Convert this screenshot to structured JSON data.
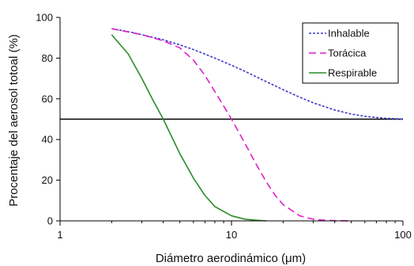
{
  "chart_data": {
    "type": "line",
    "xlabel": "Diámetro aerodinámico (μm)",
    "ylabel": "Procentaje del aerosol totoal (%)",
    "xscale": "log",
    "xlim": [
      1,
      100
    ],
    "ylim": [
      0,
      100
    ],
    "x_ticks": [
      {
        "value": 1,
        "label": "1"
      },
      {
        "value": 10,
        "label": "10"
      },
      {
        "value": 100,
        "label": "100"
      }
    ],
    "y_ticks": [
      {
        "value": 0,
        "label": "0"
      },
      {
        "value": 20,
        "label": "20"
      },
      {
        "value": 40,
        "label": "40"
      },
      {
        "value": 60,
        "label": "60"
      },
      {
        "value": 80,
        "label": "80"
      },
      {
        "value": 100,
        "label": "100"
      }
    ],
    "grid": false,
    "legend_position": "top-right",
    "reference_line": {
      "y": 50,
      "color": "#000000"
    },
    "series": [
      {
        "name": "Inhalable",
        "color": "#3a3ac8",
        "style": "dotted",
        "points": [
          [
            2,
            94.5
          ],
          [
            2.5,
            93
          ],
          [
            3,
            91.5
          ],
          [
            4,
            89
          ],
          [
            5,
            86.5
          ],
          [
            6,
            84.2
          ],
          [
            8,
            80
          ],
          [
            10,
            76.5
          ],
          [
            12,
            73.5
          ],
          [
            15,
            69.5
          ],
          [
            20,
            64.5
          ],
          [
            25,
            60.8
          ],
          [
            30,
            58
          ],
          [
            40,
            54.5
          ],
          [
            50,
            52.5
          ],
          [
            60,
            51.4
          ],
          [
            70,
            50.8
          ],
          [
            80,
            50.4
          ],
          [
            100,
            50
          ]
        ]
      },
      {
        "name": "Torácica",
        "color": "#e020c8",
        "style": "dashed",
        "points": [
          [
            2,
            94.5
          ],
          [
            3,
            91.5
          ],
          [
            4,
            88.5
          ],
          [
            5,
            85
          ],
          [
            6,
            79
          ],
          [
            7,
            71.5
          ],
          [
            8,
            63.5
          ],
          [
            9,
            56.5
          ],
          [
            10,
            50
          ],
          [
            12,
            38
          ],
          [
            14,
            27.5
          ],
          [
            16,
            19
          ],
          [
            18,
            12.5
          ],
          [
            20,
            8
          ],
          [
            25,
            2.5
          ],
          [
            30,
            0.8
          ],
          [
            35,
            0.3
          ],
          [
            40,
            0.1
          ],
          [
            50,
            0
          ]
        ]
      },
      {
        "name": "Respirable",
        "color": "#2a8c2a",
        "style": "solid",
        "points": [
          [
            2,
            91.5
          ],
          [
            2.5,
            82
          ],
          [
            3,
            70
          ],
          [
            3.5,
            59
          ],
          [
            4,
            50
          ],
          [
            4.5,
            41
          ],
          [
            5,
            33
          ],
          [
            6,
            21
          ],
          [
            7,
            12.5
          ],
          [
            8,
            7
          ],
          [
            10,
            2.5
          ],
          [
            12,
            0.8
          ],
          [
            14,
            0.3
          ],
          [
            16,
            0
          ]
        ]
      }
    ]
  }
}
